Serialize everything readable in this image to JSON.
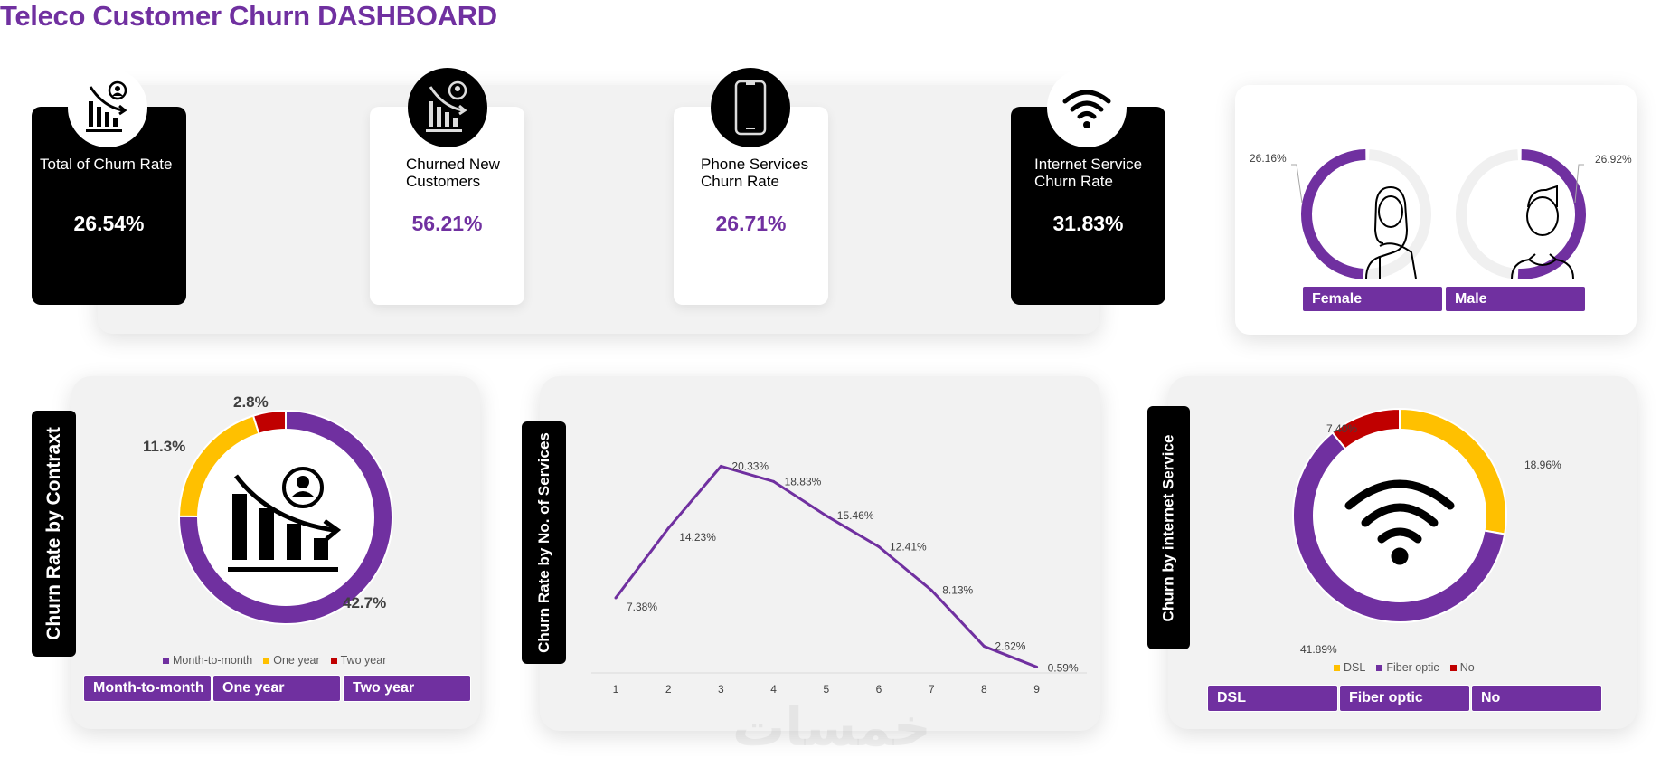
{
  "title": "Teleco Customer Churn DASHBOARD",
  "kpis": [
    {
      "label": "Total of Churn Rate",
      "value": "26.54%",
      "icon": "churn-chart-icon",
      "theme": "dark"
    },
    {
      "label": "Churned New Customers",
      "value": "56.21%",
      "icon": "churn-chart-icon",
      "theme": "light"
    },
    {
      "label": "Phone Services Churn Rate",
      "value": "26.71%",
      "icon": "smartphone-icon",
      "theme": "light"
    },
    {
      "label": "Internet Service Churn Rate",
      "value": "31.83%",
      "icon": "wifi-icon",
      "theme": "dark"
    }
  ],
  "gender": {
    "female": {
      "label": "Female",
      "value": "26.16%",
      "icon": "female-hijab-icon"
    },
    "male": {
      "label": "Male",
      "value": "26.92%",
      "icon": "male-icon"
    }
  },
  "colors": {
    "purple": "#7030a0",
    "yellow": "#ffc000",
    "red": "#c00000",
    "track": "#f0f0f0"
  },
  "watermark": "خمسات",
  "chart_data": [
    {
      "type": "pie",
      "title": "Churn Rate by Contraxt",
      "categories": [
        "Month-to-month",
        "One year",
        "Two year"
      ],
      "values": [
        42.7,
        11.3,
        2.8
      ],
      "labels": [
        "42.7%",
        "11.3%",
        "2.8%"
      ],
      "colors": [
        "#7030a0",
        "#ffc000",
        "#c00000"
      ],
      "legend": "bottom",
      "buttons": [
        "Month-to-month",
        "One year",
        "Two year"
      ]
    },
    {
      "type": "line",
      "title": "Churn Rate by No. of Services",
      "x": [
        1,
        2,
        3,
        4,
        5,
        6,
        7,
        8,
        9
      ],
      "values": [
        7.38,
        14.23,
        20.33,
        18.83,
        15.46,
        12.41,
        8.13,
        2.62,
        0.59
      ],
      "labels": [
        "7.38%",
        "14.23%",
        "20.33%",
        "18.83%",
        "15.46%",
        "12.41%",
        "8.13%",
        "2.62%",
        "0.59%"
      ],
      "color": "#7030a0",
      "grid": false
    },
    {
      "type": "pie",
      "title": "Churn by internet Service",
      "categories": [
        "DSL",
        "Fiber optic",
        "No"
      ],
      "values": [
        18.96,
        41.89,
        7.4
      ],
      "labels": [
        "18.96%",
        "41.89%",
        "7.40%"
      ],
      "colors": [
        "#ffc000",
        "#7030a0",
        "#c00000"
      ],
      "legend": "bottom",
      "buttons": [
        "DSL",
        "Fiber optic",
        "No"
      ]
    }
  ]
}
